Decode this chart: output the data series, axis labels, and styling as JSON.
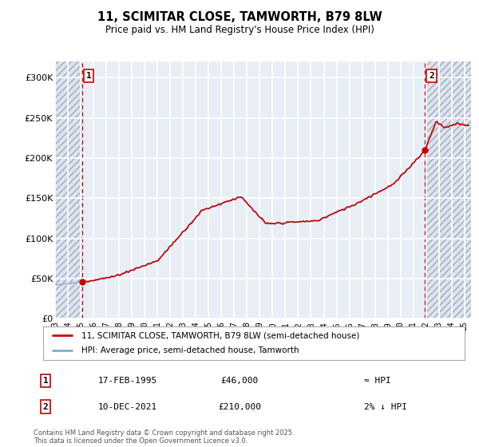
{
  "title": "11, SCIMITAR CLOSE, TAMWORTH, B79 8LW",
  "subtitle": "Price paid vs. HM Land Registry's House Price Index (HPI)",
  "sale1_date": "17-FEB-1995",
  "sale1_price": 46000,
  "sale1_label": "≈ HPI",
  "sale1_year": 1995.12,
  "sale2_date": "10-DEC-2021",
  "sale2_price": 210000,
  "sale2_label": "2% ↓ HPI",
  "sale2_year": 2021.92,
  "legend_entry1": "11, SCIMITAR CLOSE, TAMWORTH, B79 8LW (semi-detached house)",
  "legend_entry2": "HPI: Average price, semi-detached house, Tamworth",
  "price_line_color": "#cc0000",
  "hpi_line_color": "#88aacc",
  "hatch_fill_color": "#dde4ee",
  "background_plot": "#e8eef6",
  "background_fig": "#ffffff",
  "grid_color": "#ffffff",
  "ylim": [
    0,
    320000
  ],
  "yticks": [
    0,
    50000,
    100000,
    150000,
    200000,
    250000,
    300000
  ],
  "ytick_labels": [
    "£0",
    "£50K",
    "£100K",
    "£150K",
    "£200K",
    "£250K",
    "£300K"
  ],
  "xmin": 1993.0,
  "xmax": 2025.5,
  "footnote": "Contains HM Land Registry data © Crown copyright and database right 2025.\nThis data is licensed under the Open Government Licence v3.0."
}
